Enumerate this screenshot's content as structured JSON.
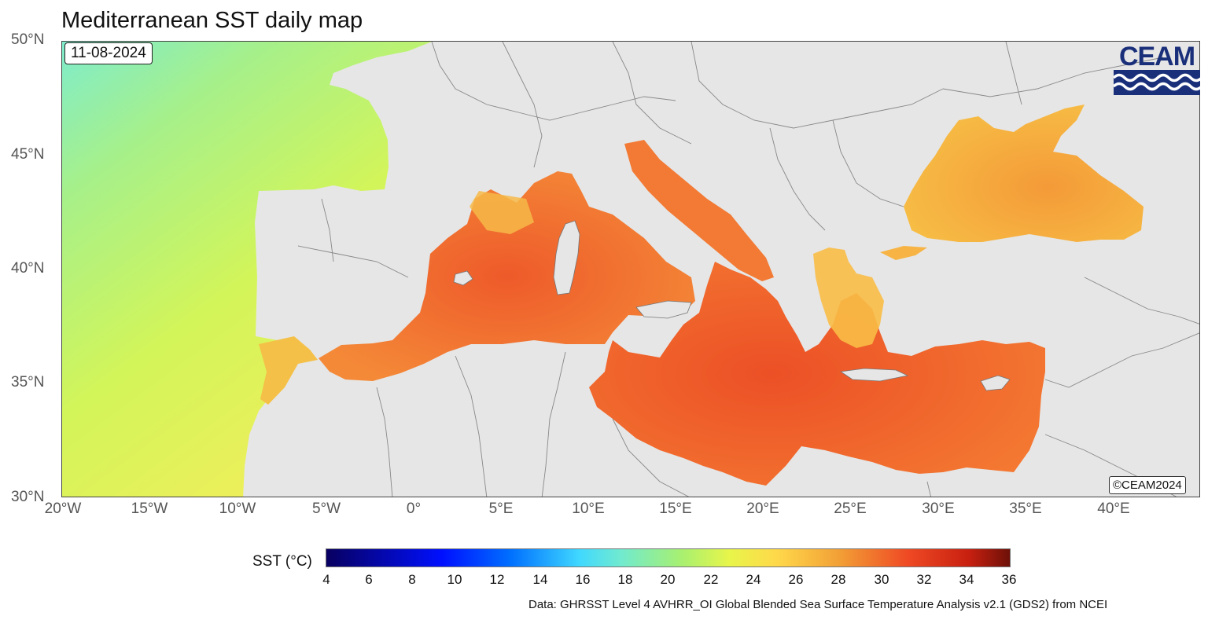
{
  "title": "Mediterranean SST daily map",
  "date": "11-08-2024",
  "logo_text": "CEAM",
  "copyright": "©CEAM2024",
  "legend": {
    "title": "SST (°C)",
    "ticks": [
      "4",
      "6",
      "8",
      "10",
      "12",
      "14",
      "16",
      "18",
      "20",
      "22",
      "24",
      "26",
      "28",
      "30",
      "32",
      "34",
      "36"
    ]
  },
  "data_source": "Data: GHRSST Level 4 AVHRR_OI Global Blended Sea Surface Temperature Analysis v2.1 (GDS2) from NCEI",
  "axes": {
    "lat_labels": [
      "50°N",
      "45°N",
      "40°N",
      "35°N",
      "30°N"
    ],
    "lon_labels": [
      "20°W",
      "15°W",
      "10°W",
      "5°W",
      "0°",
      "5°E",
      "10°E",
      "15°E",
      "20°E",
      "25°E",
      "30°E",
      "35°E",
      "40°E"
    ]
  },
  "colors": {
    "land": "#e6e6e6",
    "atlantic": "#c6f45a",
    "med_warm": "#f06a2e",
    "black_sea": "#f5a23c",
    "logo_blue": "#1a2f7a"
  }
}
